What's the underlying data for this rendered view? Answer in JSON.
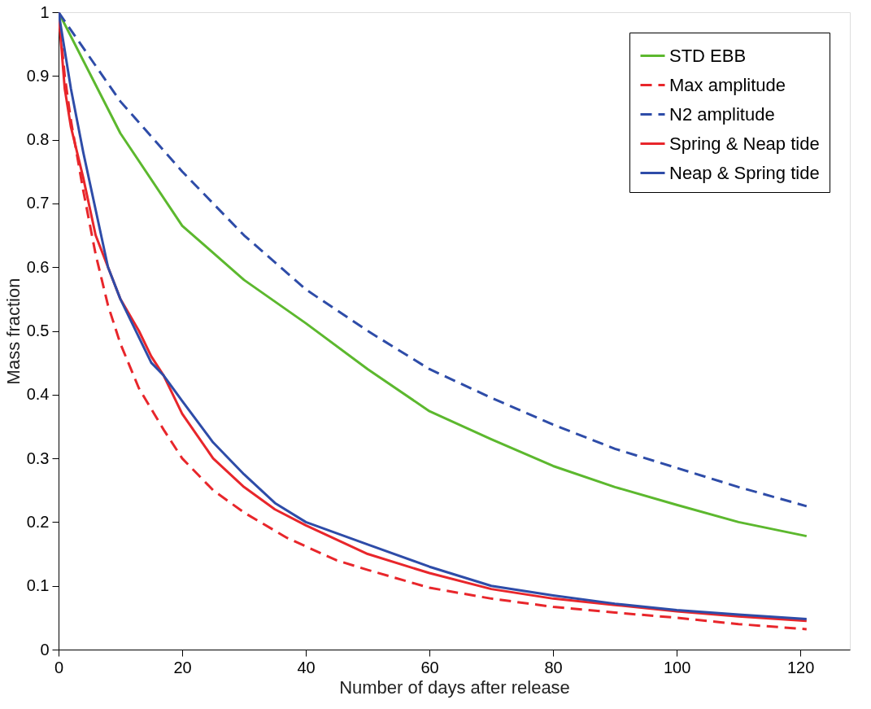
{
  "chart_data": {
    "type": "line",
    "xlabel": "Number of days after release",
    "ylabel": "Mass fraction",
    "xlim": [
      0,
      128
    ],
    "xticks": [
      0,
      20,
      40,
      60,
      80,
      100,
      120
    ],
    "ylim": [
      0,
      1
    ],
    "yticks": [
      0,
      0.1,
      0.2,
      0.3,
      0.4,
      0.5,
      0.6,
      0.7,
      0.8,
      0.9,
      1
    ],
    "grid": false,
    "legend": "top right",
    "marker": "none",
    "series": [
      {
        "name": "STD EBB",
        "color": "#5cb82e",
        "line_style": "solid",
        "x": [
          0,
          10,
          20,
          30,
          40,
          50,
          60,
          70,
          80,
          90,
          100,
          110,
          121
        ],
        "values": [
          1,
          0.81,
          0.665,
          0.58,
          0.512,
          0.44,
          0.374,
          0.33,
          0.288,
          0.255,
          0.227,
          0.2,
          0.178
        ]
      },
      {
        "name": "Max amplitude",
        "color": "#e8262b",
        "line_style": "dashed",
        "x": [
          0,
          1,
          2,
          4,
          6,
          8,
          10,
          13,
          17,
          20,
          25,
          30,
          37,
          45,
          50,
          60,
          70,
          80,
          90,
          100,
          110,
          121
        ],
        "values": [
          1,
          0.9,
          0.83,
          0.72,
          0.62,
          0.54,
          0.48,
          0.41,
          0.345,
          0.3,
          0.25,
          0.215,
          0.175,
          0.14,
          0.125,
          0.097,
          0.08,
          0.067,
          0.058,
          0.05,
          0.04,
          0.032
        ]
      },
      {
        "name": "N2 amplitude",
        "color": "#2e4ca8",
        "line_style": "dashed",
        "x": [
          0,
          10,
          20,
          30,
          40,
          50,
          60,
          70,
          80,
          90,
          100,
          110,
          121
        ],
        "values": [
          1,
          0.86,
          0.75,
          0.65,
          0.565,
          0.5,
          0.44,
          0.395,
          0.353,
          0.315,
          0.285,
          0.255,
          0.225
        ]
      },
      {
        "name": "Spring & Neap tide",
        "color": "#e8262b",
        "line_style": "solid",
        "x": [
          0,
          1,
          2,
          4,
          6,
          8,
          10,
          13,
          15,
          17,
          20,
          25,
          30,
          35,
          40,
          50,
          60,
          70,
          80,
          90,
          100,
          110,
          121
        ],
        "values": [
          1,
          0.88,
          0.82,
          0.74,
          0.65,
          0.6,
          0.55,
          0.5,
          0.46,
          0.43,
          0.37,
          0.3,
          0.255,
          0.22,
          0.195,
          0.15,
          0.12,
          0.095,
          0.08,
          0.07,
          0.06,
          0.052,
          0.045
        ]
      },
      {
        "name": "Neap & Spring tide",
        "color": "#2e4ca8",
        "line_style": "solid",
        "x": [
          0,
          2,
          4,
          6,
          8,
          10,
          13,
          15,
          17,
          20,
          25,
          30,
          35,
          40,
          50,
          60,
          70,
          80,
          90,
          100,
          110,
          121
        ],
        "values": [
          1,
          0.88,
          0.78,
          0.69,
          0.6,
          0.55,
          0.49,
          0.45,
          0.43,
          0.39,
          0.325,
          0.275,
          0.23,
          0.2,
          0.165,
          0.13,
          0.1,
          0.085,
          0.072,
          0.062,
          0.055,
          0.048
        ]
      }
    ]
  }
}
